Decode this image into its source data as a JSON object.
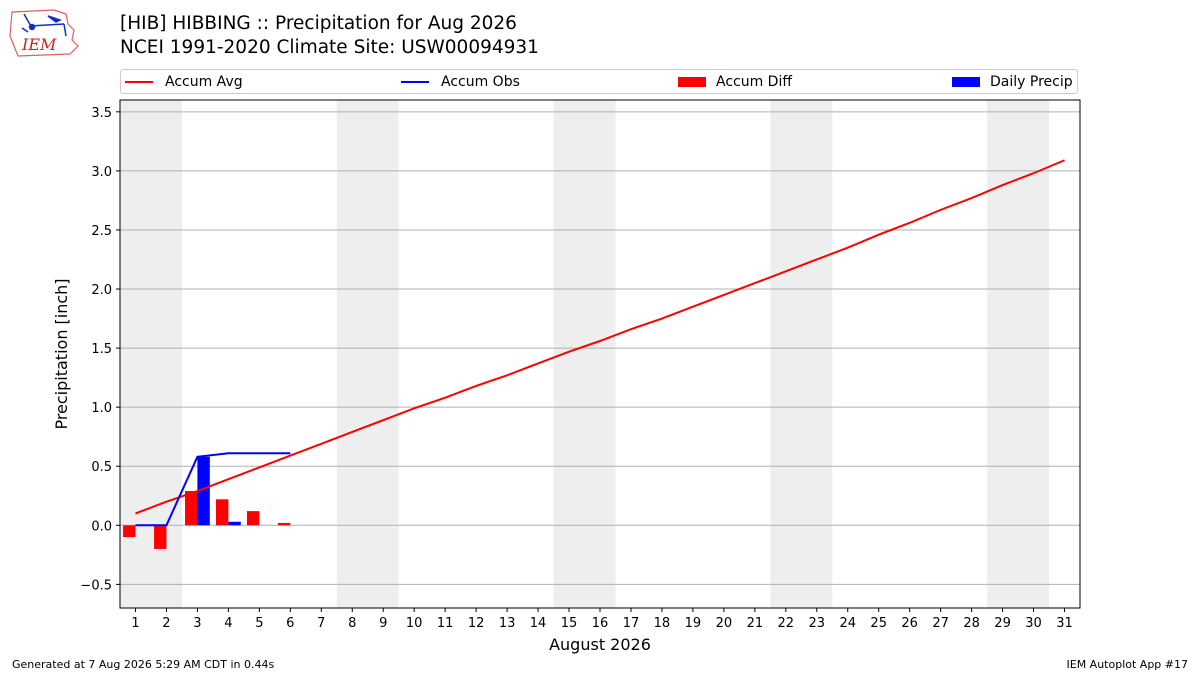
{
  "header": {
    "title_line1": "[HIB] HIBBING :: Precipitation for Aug 2026",
    "title_line2": "NCEI 1991-2020 Climate Site: USW00094931",
    "logo_text": "IEM"
  },
  "footer": {
    "left": "Generated at 7 Aug 2026 5:29 AM CDT in 0.44s",
    "right": "IEM Autoplot App #17"
  },
  "colors": {
    "avg": "#ff0000",
    "obs": "#0000ff",
    "diff": "#ff0000",
    "daily": "#0000ff",
    "weekend_shade": "#eeeeee",
    "grid": "#b0b0b0"
  },
  "chart_data": {
    "type": "line",
    "xlabel": "August 2026",
    "ylabel": "Precipitation [inch]",
    "xlim": [
      0.5,
      31.5
    ],
    "ylim": [
      -0.7,
      3.6
    ],
    "yticks": [
      -0.5,
      0.0,
      0.5,
      1.0,
      1.5,
      2.0,
      2.5,
      3.0,
      3.5
    ],
    "ytick_labels": [
      "−0.5",
      "0.0",
      "0.5",
      "1.0",
      "1.5",
      "2.0",
      "2.5",
      "3.0",
      "3.5"
    ],
    "xticks": [
      1,
      2,
      3,
      4,
      5,
      6,
      7,
      8,
      9,
      10,
      11,
      12,
      13,
      14,
      15,
      16,
      17,
      18,
      19,
      20,
      21,
      22,
      23,
      24,
      25,
      26,
      27,
      28,
      29,
      30,
      31
    ],
    "xtick_labels": [
      "1",
      "2",
      "3",
      "4",
      "5",
      "6",
      "7",
      "8",
      "9",
      "10",
      "11",
      "12",
      "13",
      "14",
      "15",
      "16",
      "17",
      "18",
      "19",
      "20",
      "21",
      "22",
      "23",
      "24",
      "25",
      "26",
      "27",
      "28",
      "29",
      "30",
      "31"
    ],
    "grid": "horizontal",
    "legend": {
      "placement": "top",
      "entries": [
        "Accum Avg",
        "Accum Obs",
        "Accum Diff",
        "Daily Precip"
      ]
    },
    "weekend_bands": [
      [
        0.5,
        2.5
      ],
      [
        7.5,
        9.5
      ],
      [
        14.5,
        16.5
      ],
      [
        21.5,
        23.5
      ],
      [
        28.5,
        30.5
      ]
    ],
    "series": [
      {
        "name": "Accum Avg",
        "type": "line",
        "x": [
          1,
          2,
          3,
          4,
          5,
          6,
          7,
          8,
          9,
          10,
          11,
          12,
          13,
          14,
          15,
          16,
          17,
          18,
          19,
          20,
          21,
          22,
          23,
          24,
          25,
          26,
          27,
          28,
          29,
          30,
          31
        ],
        "values": [
          0.1,
          0.2,
          0.29,
          0.39,
          0.49,
          0.59,
          0.69,
          0.79,
          0.89,
          0.99,
          1.08,
          1.18,
          1.27,
          1.37,
          1.47,
          1.56,
          1.66,
          1.75,
          1.85,
          1.95,
          2.05,
          2.15,
          2.25,
          2.35,
          2.46,
          2.56,
          2.67,
          2.77,
          2.88,
          2.98,
          3.09
        ]
      },
      {
        "name": "Accum Obs",
        "type": "line",
        "x": [
          1,
          2,
          3,
          4,
          5,
          6
        ],
        "values": [
          0.0,
          0.0,
          0.58,
          0.61,
          0.61,
          0.61
        ]
      },
      {
        "name": "Accum Diff",
        "type": "bar",
        "x": [
          1,
          2,
          3,
          4,
          5,
          6
        ],
        "values": [
          -0.1,
          -0.2,
          0.29,
          0.22,
          0.12,
          0.02
        ]
      },
      {
        "name": "Daily Precip",
        "type": "bar",
        "x": [
          1,
          2,
          3,
          4,
          5,
          6
        ],
        "values": [
          0.0,
          0.0,
          0.58,
          0.03,
          0.0,
          0.0
        ]
      }
    ]
  }
}
